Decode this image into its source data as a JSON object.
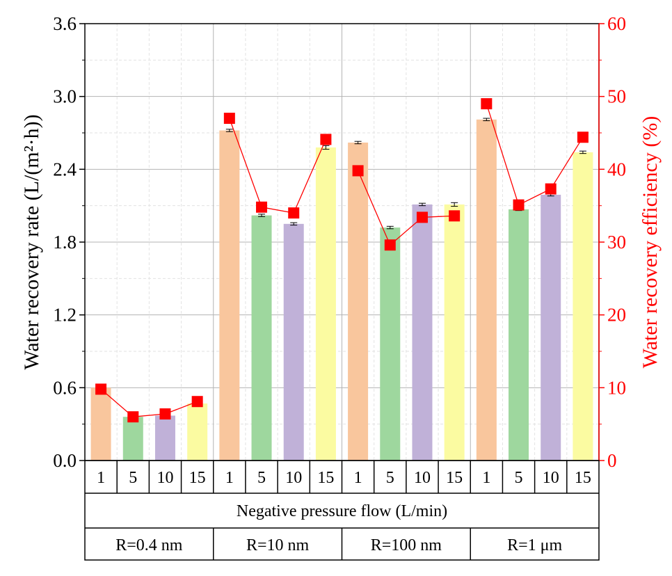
{
  "chart_data": {
    "type": "bar+line",
    "ylabel_left": "Water recovery rate (L/(m²·h))",
    "ylabel_right": "Water recovery efficiency (%)",
    "ylim_left": [
      0,
      3.6
    ],
    "ylim_right": [
      0,
      60
    ],
    "yticks_left": [
      "0.0",
      "0.6",
      "1.2",
      "1.8",
      "2.4",
      "3.0",
      "3.6"
    ],
    "yticks_right": [
      "0",
      "10",
      "20",
      "30",
      "40",
      "50",
      "60"
    ],
    "grid": true,
    "xlabel": "Negative pressure flow (L/min)",
    "flow_labels": [
      "1",
      "5",
      "10",
      "15"
    ],
    "flow_colors": [
      "#f9c69d",
      "#9ed79e",
      "#c0b1d8",
      "#fbfba1"
    ],
    "line_color": "#ff0000",
    "groups": [
      {
        "label": "R=0.4 nm",
        "rate": [
          0.6,
          0.36,
          0.37,
          0.47
        ],
        "rate_err": [
          0.0,
          0.0,
          0.0,
          0.0
        ],
        "efficiency": [
          9.8,
          6.0,
          6.4,
          8.1
        ]
      },
      {
        "label": "R=10 nm",
        "rate": [
          2.72,
          2.02,
          1.95,
          2.58
        ],
        "rate_err": [
          0.01,
          0.01,
          0.01,
          0.015
        ],
        "efficiency": [
          47.0,
          34.8,
          34.0,
          44.1
        ]
      },
      {
        "label": "R=100 nm",
        "rate": [
          2.62,
          1.92,
          2.11,
          2.11
        ],
        "rate_err": [
          0.01,
          0.01,
          0.01,
          0.015
        ],
        "efficiency": [
          39.8,
          29.6,
          33.4,
          33.6
        ]
      },
      {
        "label": "R=1 μm",
        "rate": [
          2.81,
          2.07,
          2.19,
          2.54
        ],
        "rate_err": [
          0.01,
          0.01,
          0.01,
          0.01
        ],
        "efficiency": [
          49.0,
          35.1,
          37.3,
          44.4
        ]
      }
    ]
  }
}
